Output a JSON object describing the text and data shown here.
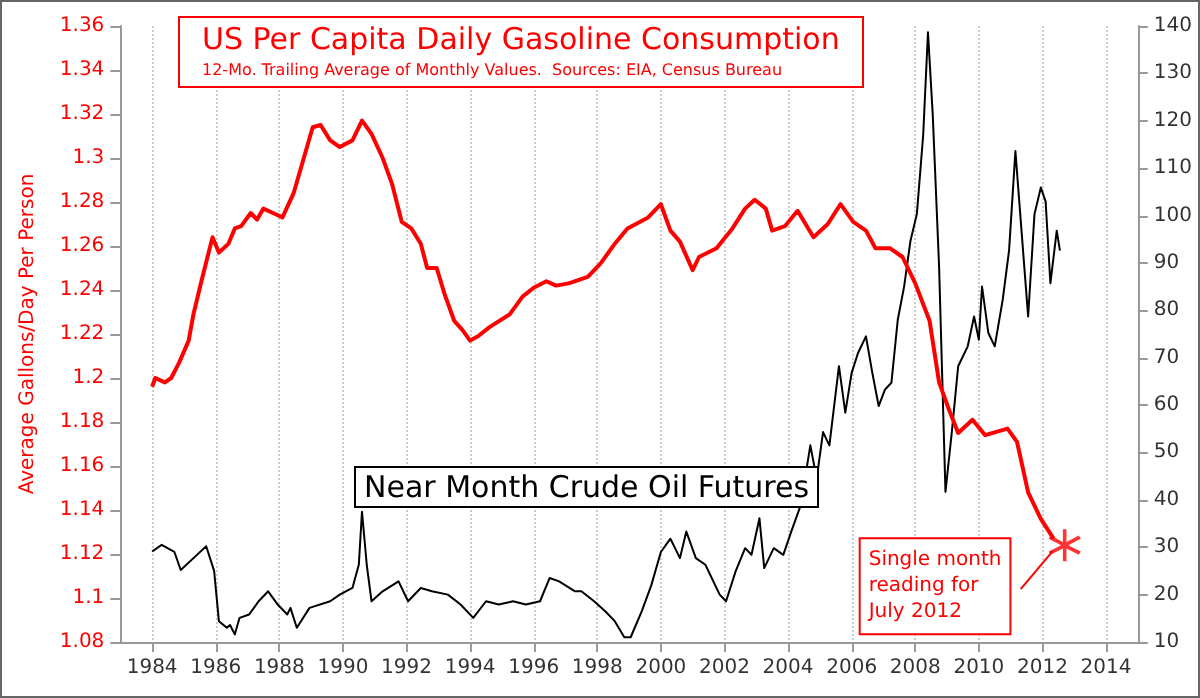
{
  "chart_data": {
    "type": "line",
    "title": "US Per Capita Daily Gasoline Consumption",
    "subtitle": "12-Mo. Trailing Average of Monthly Values.  Sources: EIA, Census Bureau",
    "ylabel": "Average Gallons/Day Per Person",
    "xlim": [
      1983,
      2015
    ],
    "xticks": [
      1984,
      1986,
      1988,
      1990,
      1992,
      1994,
      1996,
      1998,
      2000,
      2002,
      2004,
      2006,
      2008,
      2010,
      2012,
      2014
    ],
    "ylim": [
      1.08,
      1.36
    ],
    "yticks": [
      1.08,
      1.1,
      1.12,
      1.14,
      1.16,
      1.18,
      1.2,
      1.22,
      1.24,
      1.26,
      1.28,
      1.3,
      1.32,
      1.34,
      1.36
    ],
    "y2lim": [
      10,
      140
    ],
    "y2ticks": [
      10,
      20,
      30,
      40,
      50,
      60,
      70,
      80,
      90,
      100,
      110,
      120,
      130,
      140
    ],
    "grid": "x",
    "marker": "none",
    "line_style": "solid",
    "series": [
      {
        "color": "#ff0000",
        "x": [
          1984.0,
          1984.1,
          1984.4,
          1984.6,
          1984.85,
          1985.15,
          1985.3,
          1985.55,
          1985.9,
          1986.1,
          1986.4,
          1986.6,
          1986.8,
          1987.1,
          1987.3,
          1987.5,
          1987.8,
          1988.1,
          1988.45,
          1988.75,
          1989.05,
          1989.3,
          1989.6,
          1989.9,
          1990.3,
          1990.6,
          1990.9,
          1991.25,
          1991.55,
          1991.85,
          1992.15,
          1992.45,
          1992.65,
          1992.95,
          1993.2,
          1993.5,
          1993.75,
          1994.0,
          1994.25,
          1994.6,
          1995.25,
          1995.65,
          1996.0,
          1996.4,
          1996.7,
          1997.1,
          1997.7,
          1998.1,
          1998.45,
          1998.55,
          1998.95,
          1999.6,
          2000.0,
          2000.3,
          2000.6,
          2001.0,
          2001.2,
          2001.75,
          2002.25,
          2002.65,
          2002.95,
          2003.3,
          2003.5,
          2003.9,
          2004.3,
          2004.8,
          2005.25,
          2005.65,
          2006.05,
          2006.45,
          2006.75,
          2007.2,
          2007.6,
          2008.0,
          2008.45,
          2008.75,
          2009.05,
          2009.35,
          2009.8,
          2010.2,
          2010.9,
          2011.2,
          2011.55,
          2011.95,
          2012.35
        ],
        "values": [
          1.196,
          1.2,
          1.198,
          1.2,
          1.207,
          1.217,
          1.229,
          1.244,
          1.264,
          1.257,
          1.261,
          1.268,
          1.269,
          1.275,
          1.272,
          1.277,
          1.275,
          1.273,
          1.284,
          1.299,
          1.314,
          1.315,
          1.308,
          1.305,
          1.308,
          1.317,
          1.311,
          1.3,
          1.288,
          1.271,
          1.268,
          1.261,
          1.25,
          1.25,
          1.238,
          1.226,
          1.222,
          1.217,
          1.219,
          1.223,
          1.229,
          1.237,
          1.241,
          1.244,
          1.242,
          1.243,
          1.246,
          1.252,
          1.259,
          1.261,
          1.268,
          1.273,
          1.279,
          1.267,
          1.262,
          1.249,
          1.255,
          1.259,
          1.268,
          1.277,
          1.281,
          1.277,
          1.267,
          1.269,
          1.276,
          1.264,
          1.27,
          1.279,
          1.271,
          1.267,
          1.259,
          1.259,
          1.255,
          1.243,
          1.226,
          1.198,
          1.186,
          1.175,
          1.181,
          1.174,
          1.177,
          1.171,
          1.148,
          1.136,
          1.127
        ]
      },
      {
        "type": "scatter",
        "color": "#ff0000",
        "marker": "star",
        "x": [
          2012.7
        ],
        "values": [
          1.124
        ]
      },
      {
        "name": "Near Month Crude Oil Futures",
        "axis": "y2",
        "color": "#000000",
        "x": [
          1984.0,
          1984.3,
          1984.7,
          1984.9,
          1985.3,
          1985.7,
          1985.95,
          1986.1,
          1986.35,
          1986.45,
          1986.6,
          1986.75,
          1987.05,
          1987.35,
          1987.65,
          1987.95,
          1988.25,
          1988.35,
          1988.55,
          1988.95,
          1989.6,
          1989.9,
          1990.3,
          1990.5,
          1990.6,
          1990.75,
          1990.9,
          1991.25,
          1991.75,
          1992.05,
          1992.45,
          1992.8,
          1993.3,
          1993.7,
          1994.1,
          1994.5,
          1994.9,
          1995.35,
          1995.75,
          1996.2,
          1996.5,
          1996.8,
          1997.3,
          1997.5,
          1997.9,
          1998.25,
          1998.55,
          1998.85,
          1999.05,
          1999.4,
          1999.7,
          2000.0,
          2000.3,
          2000.6,
          2000.8,
          2001.1,
          2001.4,
          2001.85,
          2002.05,
          2002.35,
          2002.65,
          2002.85,
          2003.1,
          2003.25,
          2003.55,
          2003.85,
          2004.1,
          2004.4,
          2004.7,
          2004.9,
          2005.1,
          2005.3,
          2005.6,
          2005.8,
          2006.0,
          2006.2,
          2006.45,
          2006.65,
          2006.85,
          2007.05,
          2007.25,
          2007.45,
          2007.65,
          2007.85,
          2008.05,
          2008.25,
          2008.4,
          2008.55,
          2008.75,
          2008.95,
          2009.15,
          2009.35,
          2009.65,
          2009.85,
          2010.0,
          2010.1,
          2010.3,
          2010.5,
          2010.75,
          2010.95,
          2011.15,
          2011.35,
          2011.55,
          2011.75,
          2011.95,
          2012.1,
          2012.25,
          2012.45,
          2012.55
        ],
        "values": [
          29.1,
          30.5,
          29,
          25.2,
          27.7,
          30.2,
          25,
          14.4,
          13,
          13.6,
          11.6,
          15.1,
          15.8,
          18.6,
          20.7,
          17.9,
          15.8,
          17.2,
          13,
          17.2,
          18.6,
          20,
          21.4,
          26.3,
          37.5,
          26.3,
          18.6,
          20.7,
          22.8,
          18.6,
          21.4,
          20.7,
          20,
          17.9,
          15.1,
          18.6,
          17.9,
          18.6,
          17.9,
          18.6,
          23.5,
          22.8,
          20.7,
          20.7,
          18.6,
          16.5,
          14.4,
          11,
          11,
          16.5,
          22,
          29,
          31.8,
          27.7,
          33.3,
          27.7,
          26.3,
          20,
          18.6,
          24.9,
          29.8,
          28.4,
          36.1,
          25.6,
          29.8,
          28.4,
          33.3,
          38.9,
          51.5,
          44.5,
          54.3,
          51.5,
          68.2,
          58.4,
          66.8,
          71,
          74.5,
          66.8,
          59.8,
          63.3,
          64.7,
          78,
          85,
          94.7,
          100.3,
          117,
          138.7,
          121.3,
          89.2,
          41.7,
          54.3,
          68.2,
          72.4,
          78.7,
          73.8,
          85,
          75.2,
          72.4,
          82.2,
          92.6,
          113.6,
          96.1,
          78.7,
          100.3,
          105.9,
          103,
          85.7,
          96.8,
          92.6
        ]
      }
    ],
    "annotations": [
      {
        "text": "Single month\nreading for\nJuly 2012",
        "x": 2012.7,
        "y": 1.124
      }
    ]
  }
}
